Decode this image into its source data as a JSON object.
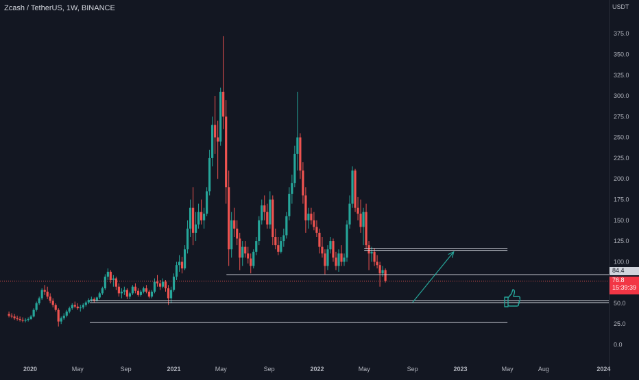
{
  "chart_header": {
    "title": "Zcash / TetherUS, 1W, BINANCE",
    "unit": "USDT"
  },
  "price_tags": {
    "level": "84.4",
    "last_price": "76.8",
    "countdown": "15:39:39"
  },
  "colors": {
    "background": "#131722",
    "up": "#26a69a",
    "down": "#ef5350",
    "level_line": "#d1d4dc",
    "arrow": "#26a69a",
    "thumbs_up": "#26a69a"
  },
  "icons": {
    "annotation": "thumbs-up-icon"
  },
  "chart_data": {
    "type": "candlestick",
    "symbol": "Zcash / TetherUS",
    "interval": "1W",
    "exchange": "BINANCE",
    "y_axis": {
      "position": "right",
      "unit": "USDT",
      "ticks": [
        0,
        25,
        50,
        75,
        100,
        125,
        150,
        175,
        200,
        225,
        250,
        275,
        300,
        325,
        350,
        375
      ],
      "tick_labels": [
        "0.0",
        "25.0",
        "50.0",
        "75.0",
        "100.0",
        "125.0",
        "150.0",
        "175.0",
        "200.0",
        "225.0",
        "250.0",
        "275.0",
        "300.0",
        "325.0",
        "350.0",
        "375.0"
      ]
    },
    "x_axis": {
      "ticks": [
        "2020-01-01",
        "2020-05-01",
        "2020-09-01",
        "2021-01-01",
        "2021-05-01",
        "2021-09-01",
        "2022-01-01",
        "2022-05-01",
        "2022-09-01",
        "2023-01-01",
        "2023-05-01",
        "2023-08-01",
        "2024-01-01"
      ],
      "tick_labels": [
        "2020",
        "May",
        "Sep",
        "2021",
        "May",
        "Sep",
        "2022",
        "May",
        "Sep",
        "2023",
        "May",
        "Aug",
        "2024"
      ]
    },
    "horizontal_levels": [
      {
        "price": 115,
        "style": "double",
        "from": "2022-05-01",
        "to": "2023-05-01"
      },
      {
        "price": 84.4,
        "from": "2021-05-15",
        "to": "extends-right"
      },
      {
        "price": 52,
        "style": "double",
        "from": "2020-06-01",
        "to": "extends-right"
      },
      {
        "price": 27,
        "from": "2020-06-01",
        "to": "2023-05-01"
      }
    ],
    "trend_arrow": {
      "from": [
        "2022-09-01",
        51
      ],
      "to": [
        "2022-12-15",
        112
      ]
    },
    "last_price": 76.8,
    "candles": [
      {
        "d": "2019-11-08",
        "o": 37,
        "h": 40,
        "l": 33,
        "c": 35
      },
      {
        "d": "2019-11-15",
        "o": 35,
        "h": 38,
        "l": 32,
        "c": 34
      },
      {
        "d": "2019-11-22",
        "o": 34,
        "h": 37,
        "l": 30,
        "c": 32
      },
      {
        "d": "2019-11-29",
        "o": 32,
        "h": 35,
        "l": 29,
        "c": 31
      },
      {
        "d": "2019-12-06",
        "o": 31,
        "h": 34,
        "l": 28,
        "c": 30
      },
      {
        "d": "2019-12-13",
        "o": 30,
        "h": 33,
        "l": 27,
        "c": 29
      },
      {
        "d": "2019-12-20",
        "o": 29,
        "h": 32,
        "l": 27,
        "c": 30
      },
      {
        "d": "2019-12-27",
        "o": 30,
        "h": 33,
        "l": 28,
        "c": 31
      },
      {
        "d": "2020-01-03",
        "o": 31,
        "h": 36,
        "l": 30,
        "c": 34
      },
      {
        "d": "2020-01-10",
        "o": 34,
        "h": 44,
        "l": 33,
        "c": 42
      },
      {
        "d": "2020-01-17",
        "o": 42,
        "h": 52,
        "l": 40,
        "c": 50
      },
      {
        "d": "2020-01-24",
        "o": 50,
        "h": 58,
        "l": 48,
        "c": 56
      },
      {
        "d": "2020-01-31",
        "o": 56,
        "h": 68,
        "l": 54,
        "c": 66
      },
      {
        "d": "2020-02-07",
        "o": 66,
        "h": 72,
        "l": 60,
        "c": 64
      },
      {
        "d": "2020-02-14",
        "o": 64,
        "h": 70,
        "l": 55,
        "c": 58
      },
      {
        "d": "2020-02-21",
        "o": 58,
        "h": 62,
        "l": 50,
        "c": 53
      },
      {
        "d": "2020-02-28",
        "o": 53,
        "h": 56,
        "l": 45,
        "c": 48
      },
      {
        "d": "2020-03-06",
        "o": 48,
        "h": 50,
        "l": 40,
        "c": 42
      },
      {
        "d": "2020-03-13",
        "o": 42,
        "h": 44,
        "l": 22,
        "c": 28
      },
      {
        "d": "2020-03-20",
        "o": 28,
        "h": 34,
        "l": 25,
        "c": 32
      },
      {
        "d": "2020-03-27",
        "o": 32,
        "h": 38,
        "l": 30,
        "c": 35
      },
      {
        "d": "2020-04-03",
        "o": 35,
        "h": 42,
        "l": 33,
        "c": 40
      },
      {
        "d": "2020-04-10",
        "o": 40,
        "h": 46,
        "l": 38,
        "c": 44
      },
      {
        "d": "2020-04-17",
        "o": 44,
        "h": 50,
        "l": 42,
        "c": 48
      },
      {
        "d": "2020-04-24",
        "o": 48,
        "h": 52,
        "l": 44,
        "c": 46
      },
      {
        "d": "2020-05-01",
        "o": 46,
        "h": 50,
        "l": 42,
        "c": 44
      },
      {
        "d": "2020-05-08",
        "o": 44,
        "h": 48,
        "l": 40,
        "c": 45
      },
      {
        "d": "2020-05-15",
        "o": 45,
        "h": 50,
        "l": 43,
        "c": 48
      },
      {
        "d": "2020-05-22",
        "o": 48,
        "h": 53,
        "l": 46,
        "c": 51
      },
      {
        "d": "2020-05-29",
        "o": 51,
        "h": 56,
        "l": 49,
        "c": 54
      },
      {
        "d": "2020-06-05",
        "o": 54,
        "h": 58,
        "l": 52,
        "c": 55
      },
      {
        "d": "2020-06-12",
        "o": 55,
        "h": 57,
        "l": 51,
        "c": 53
      },
      {
        "d": "2020-06-19",
        "o": 53,
        "h": 58,
        "l": 52,
        "c": 57
      },
      {
        "d": "2020-06-26",
        "o": 57,
        "h": 64,
        "l": 55,
        "c": 62
      },
      {
        "d": "2020-07-03",
        "o": 62,
        "h": 70,
        "l": 60,
        "c": 68
      },
      {
        "d": "2020-07-10",
        "o": 68,
        "h": 85,
        "l": 66,
        "c": 82
      },
      {
        "d": "2020-07-17",
        "o": 82,
        "h": 92,
        "l": 78,
        "c": 88
      },
      {
        "d": "2020-07-24",
        "o": 88,
        "h": 90,
        "l": 74,
        "c": 78
      },
      {
        "d": "2020-07-31",
        "o": 78,
        "h": 84,
        "l": 70,
        "c": 80
      },
      {
        "d": "2020-08-07",
        "o": 80,
        "h": 82,
        "l": 66,
        "c": 70
      },
      {
        "d": "2020-08-14",
        "o": 70,
        "h": 74,
        "l": 58,
        "c": 62
      },
      {
        "d": "2020-08-21",
        "o": 62,
        "h": 68,
        "l": 56,
        "c": 64
      },
      {
        "d": "2020-08-28",
        "o": 64,
        "h": 70,
        "l": 60,
        "c": 66
      },
      {
        "d": "2020-09-04",
        "o": 66,
        "h": 68,
        "l": 55,
        "c": 58
      },
      {
        "d": "2020-09-11",
        "o": 58,
        "h": 64,
        "l": 55,
        "c": 62
      },
      {
        "d": "2020-09-18",
        "o": 62,
        "h": 72,
        "l": 60,
        "c": 70
      },
      {
        "d": "2020-09-25",
        "o": 70,
        "h": 74,
        "l": 62,
        "c": 65
      },
      {
        "d": "2020-10-02",
        "o": 65,
        "h": 68,
        "l": 58,
        "c": 60
      },
      {
        "d": "2020-10-09",
        "o": 60,
        "h": 66,
        "l": 58,
        "c": 64
      },
      {
        "d": "2020-10-16",
        "o": 64,
        "h": 70,
        "l": 62,
        "c": 68
      },
      {
        "d": "2020-10-23",
        "o": 68,
        "h": 72,
        "l": 62,
        "c": 64
      },
      {
        "d": "2020-10-30",
        "o": 64,
        "h": 66,
        "l": 56,
        "c": 58
      },
      {
        "d": "2020-11-06",
        "o": 58,
        "h": 66,
        "l": 56,
        "c": 64
      },
      {
        "d": "2020-11-13",
        "o": 64,
        "h": 80,
        "l": 62,
        "c": 76
      },
      {
        "d": "2020-11-20",
        "o": 76,
        "h": 84,
        "l": 70,
        "c": 74
      },
      {
        "d": "2020-11-27",
        "o": 74,
        "h": 78,
        "l": 66,
        "c": 70
      },
      {
        "d": "2020-12-04",
        "o": 70,
        "h": 80,
        "l": 68,
        "c": 76
      },
      {
        "d": "2020-12-11",
        "o": 76,
        "h": 78,
        "l": 64,
        "c": 68
      },
      {
        "d": "2020-12-18",
        "o": 68,
        "h": 72,
        "l": 48,
        "c": 56
      },
      {
        "d": "2020-12-25",
        "o": 56,
        "h": 70,
        "l": 50,
        "c": 66
      },
      {
        "d": "2021-01-01",
        "o": 66,
        "h": 86,
        "l": 64,
        "c": 82
      },
      {
        "d": "2021-01-08",
        "o": 82,
        "h": 100,
        "l": 78,
        "c": 96
      },
      {
        "d": "2021-01-15",
        "o": 96,
        "h": 108,
        "l": 88,
        "c": 100
      },
      {
        "d": "2021-01-22",
        "o": 100,
        "h": 106,
        "l": 86,
        "c": 92
      },
      {
        "d": "2021-01-29",
        "o": 92,
        "h": 120,
        "l": 90,
        "c": 115
      },
      {
        "d": "2021-02-05",
        "o": 115,
        "h": 150,
        "l": 110,
        "c": 140
      },
      {
        "d": "2021-02-12",
        "o": 140,
        "h": 175,
        "l": 130,
        "c": 165
      },
      {
        "d": "2021-02-19",
        "o": 165,
        "h": 190,
        "l": 120,
        "c": 135
      },
      {
        "d": "2021-02-26",
        "o": 135,
        "h": 160,
        "l": 125,
        "c": 145
      },
      {
        "d": "2021-03-05",
        "o": 145,
        "h": 170,
        "l": 140,
        "c": 160
      },
      {
        "d": "2021-03-12",
        "o": 160,
        "h": 175,
        "l": 145,
        "c": 150
      },
      {
        "d": "2021-03-19",
        "o": 150,
        "h": 165,
        "l": 140,
        "c": 158
      },
      {
        "d": "2021-03-26",
        "o": 158,
        "h": 190,
        "l": 155,
        "c": 185
      },
      {
        "d": "2021-04-02",
        "o": 185,
        "h": 235,
        "l": 180,
        "c": 225
      },
      {
        "d": "2021-04-09",
        "o": 225,
        "h": 275,
        "l": 215,
        "c": 265
      },
      {
        "d": "2021-04-16",
        "o": 265,
        "h": 300,
        "l": 230,
        "c": 250
      },
      {
        "d": "2021-04-23",
        "o": 250,
        "h": 270,
        "l": 200,
        "c": 245
      },
      {
        "d": "2021-04-30",
        "o": 245,
        "h": 310,
        "l": 240,
        "c": 305
      },
      {
        "d": "2021-05-07",
        "o": 305,
        "h": 372,
        "l": 260,
        "c": 275
      },
      {
        "d": "2021-05-14",
        "o": 275,
        "h": 295,
        "l": 170,
        "c": 190
      },
      {
        "d": "2021-05-21",
        "o": 190,
        "h": 210,
        "l": 95,
        "c": 115
      },
      {
        "d": "2021-05-28",
        "o": 115,
        "h": 160,
        "l": 105,
        "c": 150
      },
      {
        "d": "2021-06-04",
        "o": 150,
        "h": 165,
        "l": 130,
        "c": 140
      },
      {
        "d": "2021-06-11",
        "o": 140,
        "h": 150,
        "l": 120,
        "c": 128
      },
      {
        "d": "2021-06-18",
        "o": 128,
        "h": 135,
        "l": 90,
        "c": 105
      },
      {
        "d": "2021-06-25",
        "o": 105,
        "h": 125,
        "l": 95,
        "c": 118
      },
      {
        "d": "2021-07-02",
        "o": 118,
        "h": 125,
        "l": 105,
        "c": 110
      },
      {
        "d": "2021-07-09",
        "o": 110,
        "h": 118,
        "l": 98,
        "c": 104
      },
      {
        "d": "2021-07-16",
        "o": 104,
        "h": 110,
        "l": 86,
        "c": 95
      },
      {
        "d": "2021-07-23",
        "o": 95,
        "h": 115,
        "l": 92,
        "c": 112
      },
      {
        "d": "2021-07-30",
        "o": 112,
        "h": 130,
        "l": 108,
        "c": 125
      },
      {
        "d": "2021-08-06",
        "o": 125,
        "h": 155,
        "l": 120,
        "c": 150
      },
      {
        "d": "2021-08-13",
        "o": 150,
        "h": 175,
        "l": 145,
        "c": 168
      },
      {
        "d": "2021-08-20",
        "o": 168,
        "h": 180,
        "l": 150,
        "c": 160
      },
      {
        "d": "2021-08-27",
        "o": 160,
        "h": 170,
        "l": 140,
        "c": 145
      },
      {
        "d": "2021-09-03",
        "o": 145,
        "h": 185,
        "l": 140,
        "c": 175
      },
      {
        "d": "2021-09-10",
        "o": 175,
        "h": 180,
        "l": 120,
        "c": 130
      },
      {
        "d": "2021-09-17",
        "o": 130,
        "h": 140,
        "l": 115,
        "c": 120
      },
      {
        "d": "2021-09-24",
        "o": 120,
        "h": 130,
        "l": 108,
        "c": 112
      },
      {
        "d": "2021-10-01",
        "o": 112,
        "h": 130,
        "l": 110,
        "c": 125
      },
      {
        "d": "2021-10-08",
        "o": 125,
        "h": 140,
        "l": 118,
        "c": 132
      },
      {
        "d": "2021-10-15",
        "o": 132,
        "h": 160,
        "l": 128,
        "c": 155
      },
      {
        "d": "2021-10-22",
        "o": 155,
        "h": 190,
        "l": 150,
        "c": 182
      },
      {
        "d": "2021-10-29",
        "o": 182,
        "h": 205,
        "l": 170,
        "c": 195
      },
      {
        "d": "2021-11-05",
        "o": 195,
        "h": 240,
        "l": 190,
        "c": 230
      },
      {
        "d": "2021-11-12",
        "o": 230,
        "h": 305,
        "l": 210,
        "c": 250
      },
      {
        "d": "2021-11-19",
        "o": 250,
        "h": 255,
        "l": 200,
        "c": 210
      },
      {
        "d": "2021-11-26",
        "o": 210,
        "h": 220,
        "l": 170,
        "c": 180
      },
      {
        "d": "2021-12-03",
        "o": 180,
        "h": 190,
        "l": 135,
        "c": 150
      },
      {
        "d": "2021-12-10",
        "o": 150,
        "h": 165,
        "l": 140,
        "c": 158
      },
      {
        "d": "2021-12-17",
        "o": 158,
        "h": 165,
        "l": 145,
        "c": 150
      },
      {
        "d": "2021-12-24",
        "o": 150,
        "h": 160,
        "l": 138,
        "c": 142
      },
      {
        "d": "2021-12-31",
        "o": 142,
        "h": 150,
        "l": 130,
        "c": 135
      },
      {
        "d": "2022-01-07",
        "o": 135,
        "h": 140,
        "l": 110,
        "c": 118
      },
      {
        "d": "2022-01-14",
        "o": 118,
        "h": 130,
        "l": 105,
        "c": 110
      },
      {
        "d": "2022-01-21",
        "o": 110,
        "h": 115,
        "l": 85,
        "c": 95
      },
      {
        "d": "2022-01-28",
        "o": 95,
        "h": 120,
        "l": 90,
        "c": 115
      },
      {
        "d": "2022-02-04",
        "o": 115,
        "h": 130,
        "l": 110,
        "c": 125
      },
      {
        "d": "2022-02-11",
        "o": 125,
        "h": 128,
        "l": 100,
        "c": 105
      },
      {
        "d": "2022-02-18",
        "o": 105,
        "h": 112,
        "l": 90,
        "c": 95
      },
      {
        "d": "2022-02-25",
        "o": 95,
        "h": 115,
        "l": 88,
        "c": 110
      },
      {
        "d": "2022-03-04",
        "o": 110,
        "h": 120,
        "l": 95,
        "c": 100
      },
      {
        "d": "2022-03-11",
        "o": 100,
        "h": 110,
        "l": 95,
        "c": 105
      },
      {
        "d": "2022-03-18",
        "o": 105,
        "h": 150,
        "l": 100,
        "c": 145
      },
      {
        "d": "2022-03-25",
        "o": 145,
        "h": 180,
        "l": 140,
        "c": 170
      },
      {
        "d": "2022-04-01",
        "o": 170,
        "h": 215,
        "l": 165,
        "c": 210
      },
      {
        "d": "2022-04-08",
        "o": 210,
        "h": 212,
        "l": 160,
        "c": 165
      },
      {
        "d": "2022-04-15",
        "o": 165,
        "h": 178,
        "l": 150,
        "c": 158
      },
      {
        "d": "2022-04-22",
        "o": 158,
        "h": 175,
        "l": 135,
        "c": 142
      },
      {
        "d": "2022-04-29",
        "o": 142,
        "h": 165,
        "l": 120,
        "c": 160
      },
      {
        "d": "2022-05-06",
        "o": 160,
        "h": 170,
        "l": 115,
        "c": 120
      },
      {
        "d": "2022-05-13",
        "o": 120,
        "h": 125,
        "l": 90,
        "c": 110
      },
      {
        "d": "2022-05-20",
        "o": 110,
        "h": 118,
        "l": 100,
        "c": 112
      },
      {
        "d": "2022-05-27",
        "o": 112,
        "h": 116,
        "l": 95,
        "c": 100
      },
      {
        "d": "2022-06-03",
        "o": 100,
        "h": 108,
        "l": 92,
        "c": 96
      },
      {
        "d": "2022-06-10",
        "o": 96,
        "h": 100,
        "l": 70,
        "c": 86
      },
      {
        "d": "2022-06-17",
        "o": 86,
        "h": 95,
        "l": 82,
        "c": 90
      },
      {
        "d": "2022-06-24",
        "o": 90,
        "h": 92,
        "l": 75,
        "c": 77
      }
    ]
  }
}
